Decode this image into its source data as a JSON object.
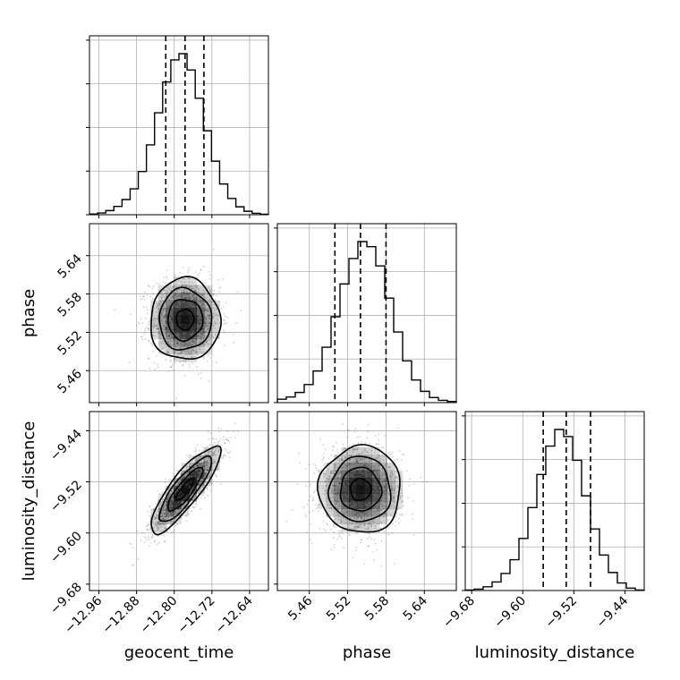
{
  "chart_data": {
    "type": "corner",
    "parameters": [
      {
        "label": "geocent_time",
        "ticks": [
          -12.96,
          -12.88,
          -12.8,
          -12.72,
          -12.64
        ],
        "tick_labels": [
          "−12.96",
          "−12.88",
          "−12.80",
          "−12.72",
          "−12.64"
        ],
        "range": [
          -12.98,
          -12.6
        ],
        "quantiles": [
          -12.818,
          -12.777,
          -12.737
        ],
        "hist_bin_edges_range": [
          -12.98,
          -12.6
        ],
        "hist_counts": [
          0.2,
          0.5,
          1.2,
          2.4,
          4.4,
          7.5,
          12.5,
          20.2,
          29.5,
          38.4,
          44.8,
          46.6,
          41.9,
          33.7,
          24.3,
          15.5,
          8.9,
          4.7,
          2.3,
          1.0,
          0.4,
          0.15
        ]
      },
      {
        "label": "phase",
        "ticks": [
          5.46,
          5.52,
          5.58,
          5.64
        ],
        "tick_labels": [
          "5.46",
          "5.52",
          "5.58",
          "5.64"
        ],
        "range": [
          5.41,
          5.69
        ],
        "quantiles": [
          5.5,
          5.54,
          5.58
        ],
        "hist_bin_edges_range": [
          5.41,
          5.69
        ],
        "hist_counts": [
          0.6,
          1.0,
          1.8,
          3.2,
          5.6,
          9.8,
          15.2,
          21.0,
          25.5,
          28.5,
          27.6,
          24.2,
          18.5,
          12.5,
          7.4,
          4.0,
          2.0,
          0.9,
          0.4,
          0.2
        ]
      },
      {
        "label": "luminosity_distance",
        "ticks": [
          -9.68,
          -9.6,
          -9.52,
          -9.44
        ],
        "tick_labels": [
          "−9.68",
          "−9.60",
          "−9.52",
          "−9.44"
        ],
        "range": [
          -9.69,
          -9.41
        ],
        "quantiles": [
          -9.568,
          -9.532,
          -9.494
        ],
        "hist_bin_edges_range": [
          -9.69,
          -9.41
        ],
        "hist_counts": [
          0.1,
          0.3,
          0.8,
          1.8,
          3.6,
          6.5,
          11.0,
          17.5,
          24.5,
          30.5,
          34.0,
          32.5,
          27.5,
          20.0,
          13.0,
          7.5,
          3.8,
          1.6,
          0.5,
          0.1
        ]
      }
    ],
    "joint": [
      {
        "x_param": "geocent_time",
        "y_param": "phase",
        "mean": [
          -12.777,
          5.54
        ],
        "sd": [
          0.037,
          0.032
        ],
        "correlation": 0.0
      },
      {
        "x_param": "geocent_time",
        "y_param": "luminosity_distance",
        "mean": [
          -12.777,
          -9.532
        ],
        "sd": [
          0.037,
          0.034
        ],
        "correlation": 0.85
      },
      {
        "x_param": "phase",
        "y_param": "luminosity_distance",
        "mean": [
          5.54,
          -9.532
        ],
        "sd": [
          0.032,
          0.034
        ],
        "correlation": 0.0
      }
    ],
    "contour_levels_sigma": [
      0.5,
      1.0,
      1.5,
      2.0
    ],
    "grid": true,
    "scatter_points_per_panel": 1400,
    "colors": {
      "scatter": "#000000",
      "contour": "#000000",
      "quantile_line": "#000000",
      "grid": "#b0b0b0"
    }
  }
}
